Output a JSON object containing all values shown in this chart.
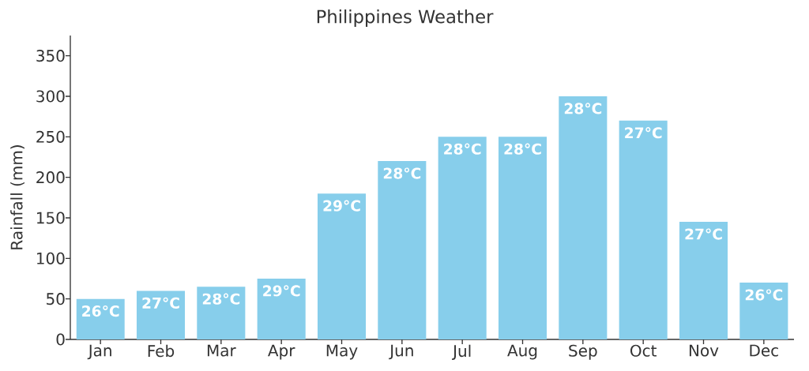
{
  "chart_data": {
    "type": "bar",
    "title": "Philippines Weather",
    "ylabel": "Rainfall (mm)",
    "categories": [
      "Jan",
      "Feb",
      "Mar",
      "Apr",
      "May",
      "Jun",
      "Jul",
      "Aug",
      "Sep",
      "Oct",
      "Nov",
      "Dec"
    ],
    "values": [
      50,
      60,
      65,
      75,
      180,
      220,
      250,
      250,
      300,
      270,
      145,
      70
    ],
    "color": "#87ceeb",
    "ylim": [
      0,
      375
    ],
    "yticks": [
      0,
      50,
      100,
      150,
      200,
      250,
      300,
      350
    ],
    "annotations": [
      {
        "text": "26°C",
        "x": "Jan",
        "y": 50
      },
      {
        "text": "27°C",
        "x": "Feb",
        "y": 60
      },
      {
        "text": "28°C",
        "x": "Mar",
        "y": 65
      },
      {
        "text": "29°C",
        "x": "Apr",
        "y": 75
      },
      {
        "text": "29°C",
        "x": "May",
        "y": 180
      },
      {
        "text": "28°C",
        "x": "Jun",
        "y": 220
      },
      {
        "text": "28°C",
        "x": "Jul",
        "y": 250
      },
      {
        "text": "28°C",
        "x": "Aug",
        "y": 250
      },
      {
        "text": "28°C",
        "x": "Sep",
        "y": 300
      },
      {
        "text": "27°C",
        "x": "Oct",
        "y": 270
      },
      {
        "text": "27°C",
        "x": "Nov",
        "y": 145
      },
      {
        "text": "26°C",
        "x": "Dec",
        "y": 70
      }
    ]
  }
}
